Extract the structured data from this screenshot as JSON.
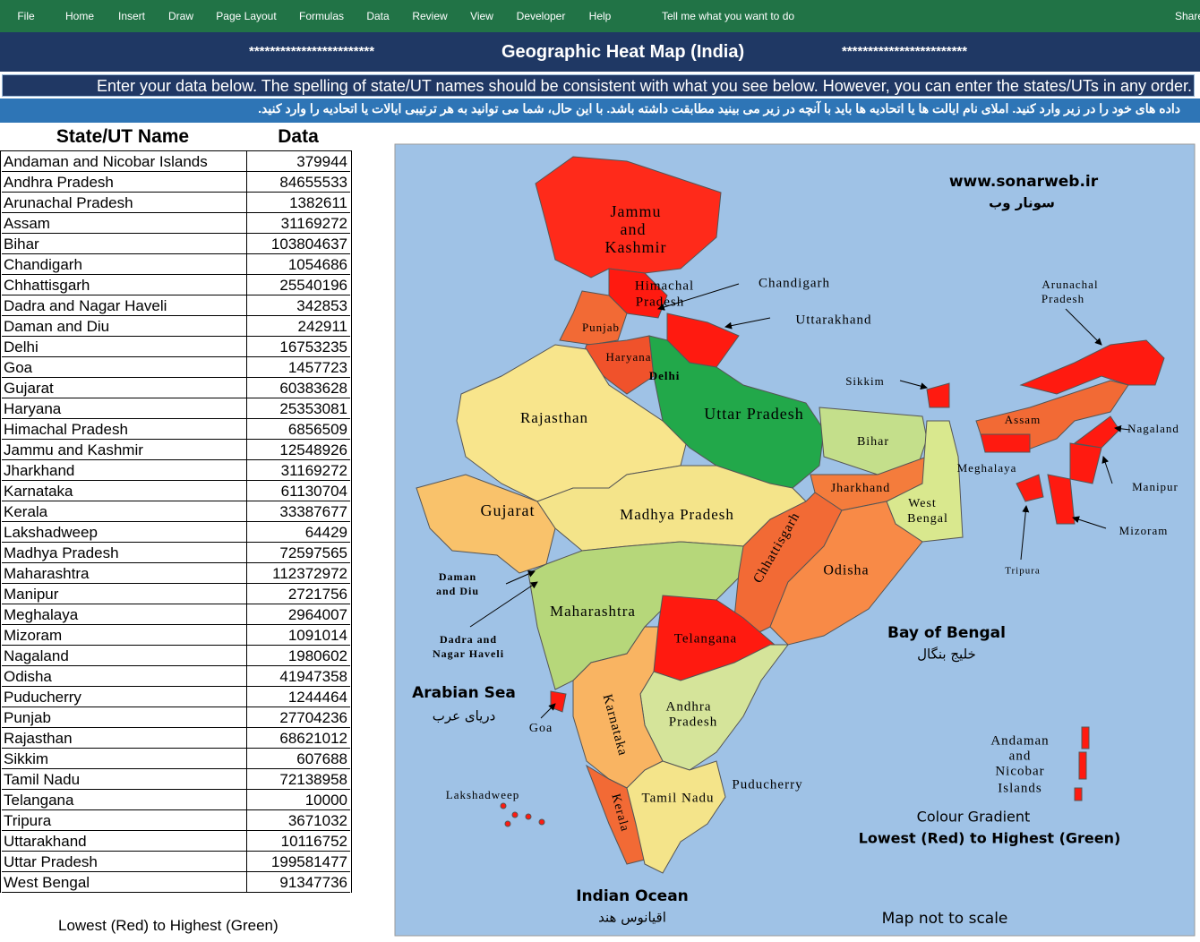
{
  "ribbon": {
    "tabs": [
      "File",
      "Home",
      "Insert",
      "Draw",
      "Page Layout",
      "Formulas",
      "Data",
      "Review",
      "View",
      "Developer",
      "Help"
    ],
    "tell": "Tell me what you want to do",
    "share": "Share"
  },
  "header": {
    "stars_left": "************************",
    "title": "Geographic Heat Map (India)",
    "stars_right": "************************"
  },
  "instructions": {
    "english": "Enter your data below. The spelling of state/UT names should be consistent with what you see below. However, you can enter the states/UTs in any order.",
    "persian": "داده های خود را در زیر وارد کنید. املای نام ایالت ها یا اتحادیه ها باید با آنچه در زیر می بینید مطابقت داشته باشد. با این حال، شما می توانید به هر ترتیبی ایالات یا اتحادیه را وارد کنید."
  },
  "table": {
    "headers": [
      "State/UT Name",
      "Data"
    ],
    "rows": [
      [
        "Andaman and Nicobar Islands",
        379944
      ],
      [
        "Andhra Pradesh",
        84655533
      ],
      [
        "Arunachal Pradesh",
        1382611
      ],
      [
        "Assam",
        31169272
      ],
      [
        "Bihar",
        103804637
      ],
      [
        "Chandigarh",
        1054686
      ],
      [
        "Chhattisgarh",
        25540196
      ],
      [
        "Dadra and Nagar Haveli",
        342853
      ],
      [
        "Daman and Diu",
        242911
      ],
      [
        "Delhi",
        16753235
      ],
      [
        "Goa",
        1457723
      ],
      [
        "Gujarat",
        60383628
      ],
      [
        "Haryana",
        25353081
      ],
      [
        "Himachal Pradesh",
        6856509
      ],
      [
        "Jammu and Kashmir",
        12548926
      ],
      [
        "Jharkhand",
        31169272
      ],
      [
        "Karnataka",
        61130704
      ],
      [
        "Kerala",
        33387677
      ],
      [
        "Lakshadweep",
        64429
      ],
      [
        "Madhya Pradesh",
        72597565
      ],
      [
        "Maharashtra",
        112372972
      ],
      [
        "Manipur",
        2721756
      ],
      [
        "Meghalaya",
        2964007
      ],
      [
        "Mizoram",
        1091014
      ],
      [
        "Nagaland",
        1980602
      ],
      [
        "Odisha",
        41947358
      ],
      [
        "Puducherry",
        1244464
      ],
      [
        "Punjab",
        27704236
      ],
      [
        "Rajasthan",
        68621012
      ],
      [
        "Sikkim",
        607688
      ],
      [
        "Tamil Nadu",
        72138958
      ],
      [
        "Telangana",
        10000
      ],
      [
        "Tripura",
        3671032
      ],
      [
        "Uttarakhand",
        10116752
      ],
      [
        "Uttar Pradesh",
        199581477
      ],
      [
        "West Bengal",
        91347736
      ]
    ]
  },
  "legend_note": "Lowest (Red) to Highest (Green)",
  "map": {
    "labels": [
      "Jammu",
      "and",
      "Kashmir",
      "Himachal",
      "Pradesh",
      "Punjab",
      "Haryana",
      "Delhi",
      "Chandigarh",
      "Uttarakhand",
      "Rajasthan",
      "Uttar Pradesh",
      "Bihar",
      "Sikkim",
      "Assam",
      "Meghalaya",
      "Nagaland",
      "Manipur",
      "Mizoram",
      "Tripura",
      "Arunachal",
      "Pradesh",
      "Jharkhand",
      "West",
      "Bengal",
      "Gujarat",
      "Madhya Pradesh",
      "Chhattisgarh",
      "Odisha",
      "Daman",
      "and Diu",
      "Maharashtra",
      "Telangana",
      "Dadra and",
      "Nagar Haveli",
      "Andhra",
      "Pradesh",
      "Karnataka",
      "Goa",
      "Puducherry",
      "Tamil Nadu",
      "Kerala",
      "Lakshadweep",
      "Andaman",
      "and",
      "Nicobar",
      "Islands"
    ],
    "annotations": [
      "www.sonarweb.ir",
      "سونار وب",
      "Arabian Sea",
      "دریای عرب",
      "Bay of Bengal",
      "خلیج بنگال",
      "Indian Ocean",
      "اقیانوس هند",
      "Colour Gradient",
      "Lowest (Red) to Highest (Green)",
      "Map not to scale"
    ]
  }
}
